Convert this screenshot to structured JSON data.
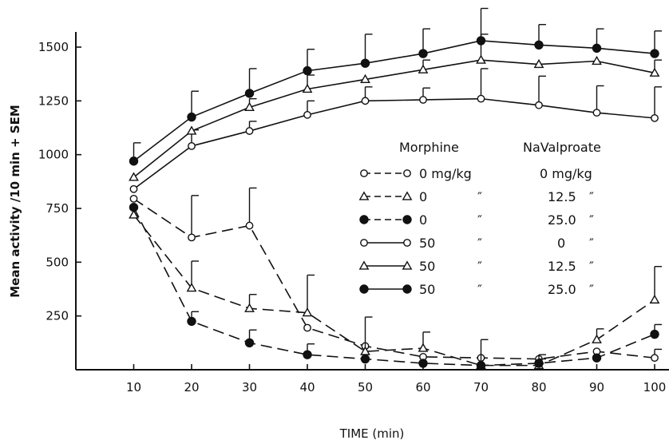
{
  "chart_data": {
    "type": "line",
    "xlabel": "TIME (min)",
    "ylabel": "Mean activity /10 min + SEM",
    "xlim": [
      0,
      100
    ],
    "ylim": [
      0,
      1500
    ],
    "x_ticks": [
      10,
      20,
      30,
      40,
      50,
      60,
      70,
      80,
      90,
      100
    ],
    "y_ticks": [
      250,
      500,
      750,
      1000,
      1250,
      1500
    ],
    "x": [
      10,
      20,
      30,
      40,
      50,
      60,
      70,
      80,
      90,
      100
    ],
    "legend": {
      "placement": "center-right",
      "header_morphine": "Morphine",
      "header_valproate": "NaValproate",
      "rows": [
        {
          "morphine": "0 mg/kg",
          "valproate": "0 mg/kg"
        },
        {
          "morphine": "0",
          "morphine_ditto": "″",
          "valproate": "12.5",
          "valproate_ditto": "″"
        },
        {
          "morphine": "0",
          "morphine_ditto": "″",
          "valproate": "25.0",
          "valproate_ditto": "″"
        },
        {
          "morphine": "50",
          "morphine_ditto": "″",
          "valproate": "0",
          "valproate_ditto": "″"
        },
        {
          "morphine": "50",
          "morphine_ditto": "″",
          "valproate": "12.5",
          "valproate_ditto": "″"
        },
        {
          "morphine": "50",
          "morphine_ditto": "″",
          "valproate": "25.0",
          "valproate_ditto": "″"
        }
      ]
    },
    "series": [
      {
        "marker": "open-circle",
        "line": "dashed",
        "values": [
          795,
          615,
          670,
          195,
          110,
          60,
          55,
          50,
          85,
          55
        ],
        "sem": [
          0,
          195,
          175,
          0,
          0,
          0,
          0,
          0,
          0,
          40
        ]
      },
      {
        "marker": "open-triangle",
        "line": "dashed",
        "values": [
          720,
          380,
          285,
          265,
          85,
          100,
          20,
          20,
          140,
          325
        ],
        "sem": [
          0,
          125,
          65,
          175,
          160,
          75,
          120,
          50,
          50,
          155
        ]
      },
      {
        "marker": "filled-circle",
        "line": "dashed",
        "values": [
          755,
          225,
          125,
          70,
          50,
          30,
          20,
          30,
          55,
          165
        ],
        "sem": [
          0,
          45,
          60,
          50,
          0,
          0,
          0,
          20,
          0,
          45
        ]
      },
      {
        "marker": "open-circle",
        "line": "solid",
        "values": [
          840,
          1040,
          1110,
          1185,
          1250,
          1255,
          1260,
          1230,
          1195,
          1170
        ],
        "sem": [
          0,
          75,
          45,
          65,
          65,
          55,
          140,
          135,
          125,
          145
        ]
      },
      {
        "marker": "open-triangle",
        "line": "solid",
        "values": [
          895,
          1110,
          1220,
          1305,
          1350,
          1395,
          1440,
          1420,
          1435,
          1380
        ],
        "sem": [
          0,
          0,
          40,
          65,
          0,
          45,
          120,
          0,
          0,
          60
        ]
      },
      {
        "marker": "filled-circle",
        "line": "solid",
        "values": [
          970,
          1175,
          1285,
          1390,
          1425,
          1470,
          1530,
          1510,
          1495,
          1470
        ],
        "sem": [
          85,
          120,
          115,
          100,
          135,
          115,
          150,
          95,
          90,
          105
        ]
      }
    ]
  }
}
